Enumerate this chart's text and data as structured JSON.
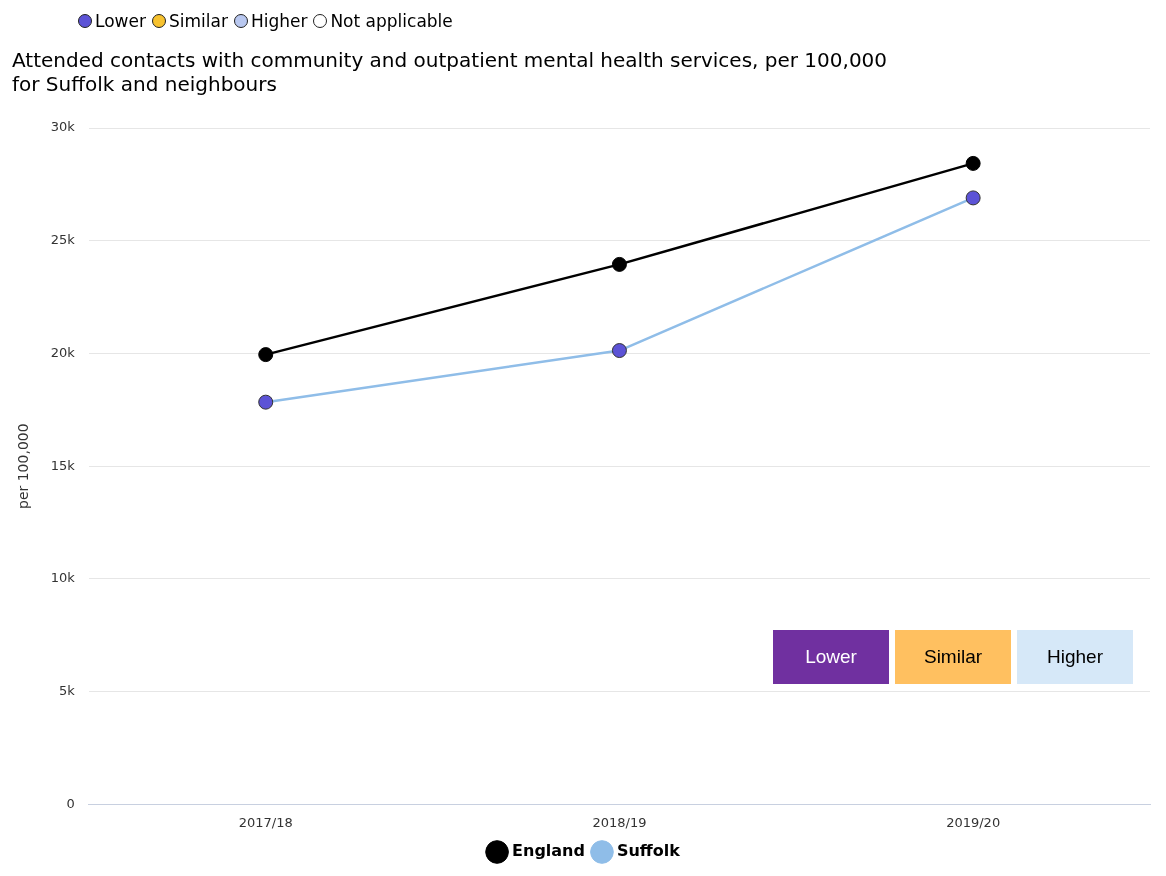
{
  "chart_data": {
    "type": "line",
    "title": [
      "Attended contacts with community and outpatient mental health services, per 100,000",
      "for Suffolk and neighbours"
    ],
    "ylabel": "per 100,000",
    "categories": [
      "2017/18",
      "2018/19",
      "2019/20"
    ],
    "series": [
      {
        "name": "England",
        "color": "#000000",
        "values": [
          19950,
          23950,
          28430
        ]
      },
      {
        "name": "Suffolk",
        "color": "#8fbde8",
        "colors": [
          "#5c53d6",
          "#5c53d6",
          "#5c53d6"
        ],
        "values": [
          17840,
          20130,
          26900
        ]
      }
    ],
    "ylim": [
      0,
      30000
    ],
    "yticks": [
      {
        "value": 0,
        "label": "0"
      },
      {
        "value": 5000,
        "label": "5k"
      },
      {
        "value": 10000,
        "label": "10k"
      },
      {
        "value": 15000,
        "label": "15k"
      },
      {
        "value": 20000,
        "label": "20k"
      },
      {
        "value": 25000,
        "label": "25k"
      },
      {
        "value": 30000,
        "label": "30k"
      }
    ],
    "grid": "y",
    "legend": "bottom",
    "marker": "circle",
    "line_style": "solid",
    "annotations": [
      "Lower",
      "Similar",
      "Higher",
      "Not applicable",
      "Lower",
      "Similar",
      "Higher"
    ]
  }
}
